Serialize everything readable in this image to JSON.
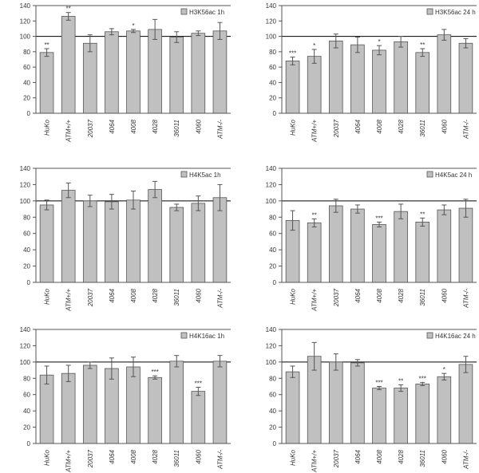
{
  "figure": {
    "panel_order": [
      "H3K56ac 1h",
      "H3K56ac 24 h",
      "H4K5ac 1h",
      "H4K5ac 24 h",
      "H4K16ac 1h",
      "H4K16ac 24 h"
    ]
  },
  "colors": {
    "bar": "#c0c0c0",
    "bar_stroke": "#555555",
    "axis": "#555555",
    "gridline": "#000000",
    "text": "#333333"
  },
  "chart_data": [
    {
      "type": "bar",
      "legend": "H3K56ac 1h",
      "categories": [
        "HuKo",
        "ATM+/+",
        "20037",
        "4064",
        "4008",
        "4028",
        "36011",
        "4060",
        "ATM-/-"
      ],
      "values": [
        79,
        126,
        91,
        106,
        107,
        109,
        99,
        104,
        107
      ],
      "errors": [
        5,
        5,
        11,
        4,
        2,
        13,
        7,
        3,
        11
      ],
      "significance": [
        "**",
        "**",
        "",
        "",
        "*",
        "",
        "",
        "",
        ""
      ],
      "ylim": [
        0,
        140
      ],
      "yticks": [
        0,
        20,
        40,
        60,
        80,
        100,
        120,
        140
      ],
      "reference_line": 100,
      "legend_position": "top-right"
    },
    {
      "type": "bar",
      "legend": "H3K56ac 24 h",
      "categories": [
        "HuKo",
        "ATM+/+",
        "20037",
        "4064",
        "4008",
        "4028",
        "36011",
        "4060",
        "ATM-/-"
      ],
      "values": [
        68,
        74,
        94,
        89,
        82,
        93,
        79,
        102,
        91
      ],
      "errors": [
        5,
        9,
        9,
        10,
        6,
        7,
        5,
        7,
        6
      ],
      "significance": [
        "***",
        "*",
        "",
        "",
        "*",
        "",
        "**",
        "",
        ""
      ],
      "ylim": [
        0,
        140
      ],
      "yticks": [
        0,
        20,
        40,
        60,
        80,
        100,
        120,
        140
      ],
      "reference_line": 100,
      "legend_position": "top-right"
    },
    {
      "type": "bar",
      "legend": "H4K5ac 1h",
      "categories": [
        "HuKo",
        "ATM+/+",
        "20037",
        "4064",
        "4008",
        "4028",
        "36011",
        "4060",
        "ATM-/-"
      ],
      "values": [
        95,
        113,
        100,
        99,
        101,
        114,
        92,
        97,
        104
      ],
      "errors": [
        6,
        9,
        7,
        9,
        11,
        10,
        4,
        9,
        16
      ],
      "significance": [
        "",
        "",
        "",
        "",
        "",
        "",
        "",
        "",
        ""
      ],
      "ylim": [
        0,
        140
      ],
      "yticks": [
        0,
        20,
        40,
        60,
        80,
        100,
        120,
        140
      ],
      "reference_line": 100,
      "legend_position": "top-right"
    },
    {
      "type": "bar",
      "legend": "H4K5ac 24 h",
      "categories": [
        "HuKo",
        "ATM+/+",
        "20037",
        "4064",
        "4008",
        "4028",
        "36011",
        "4060",
        "ATM-/-"
      ],
      "values": [
        76,
        73,
        94,
        90,
        71,
        87,
        74,
        89,
        91
      ],
      "errors": [
        12,
        5,
        8,
        5,
        3,
        9,
        5,
        6,
        11
      ],
      "significance": [
        "",
        "**",
        "",
        "",
        "***",
        "",
        "**",
        "",
        ""
      ],
      "ylim": [
        0,
        140
      ],
      "yticks": [
        0,
        20,
        40,
        60,
        80,
        100,
        120,
        140
      ],
      "reference_line": 100,
      "legend_position": "top-right"
    },
    {
      "type": "bar",
      "legend": "H4K16ac 1h",
      "categories": [
        "HuKo",
        "ATM+/+",
        "20037",
        "4064",
        "4008",
        "4028",
        "36011",
        "4060",
        "ATM-/-"
      ],
      "values": [
        84,
        86,
        96,
        92,
        94,
        81,
        101,
        64,
        101
      ],
      "errors": [
        11,
        10,
        4,
        13,
        12,
        2,
        7,
        5,
        7
      ],
      "significance": [
        "",
        "",
        "",
        "",
        "",
        "***",
        "",
        "***",
        ""
      ],
      "ylim": [
        0,
        140
      ],
      "yticks": [
        0,
        20,
        40,
        60,
        80,
        100,
        120,
        140
      ],
      "reference_line": 100,
      "legend_position": "top-right"
    },
    {
      "type": "bar",
      "legend": "H4K16ac 24 h",
      "categories": [
        "HuKo",
        "ATM+/+",
        "20037",
        "4064",
        "4008",
        "4028",
        "36011",
        "4060",
        "ATM-/-"
      ],
      "values": [
        88,
        107,
        100,
        99,
        68,
        68,
        73,
        82,
        97
      ],
      "errors": [
        7,
        17,
        10,
        4,
        2,
        4,
        2,
        4,
        10
      ],
      "significance": [
        "",
        "",
        "",
        "",
        "***",
        "**",
        "***",
        "*",
        ""
      ],
      "ylim": [
        0,
        140
      ],
      "yticks": [
        0,
        20,
        40,
        60,
        80,
        100,
        120,
        140
      ],
      "reference_line": 100,
      "legend_position": "top-right"
    }
  ]
}
